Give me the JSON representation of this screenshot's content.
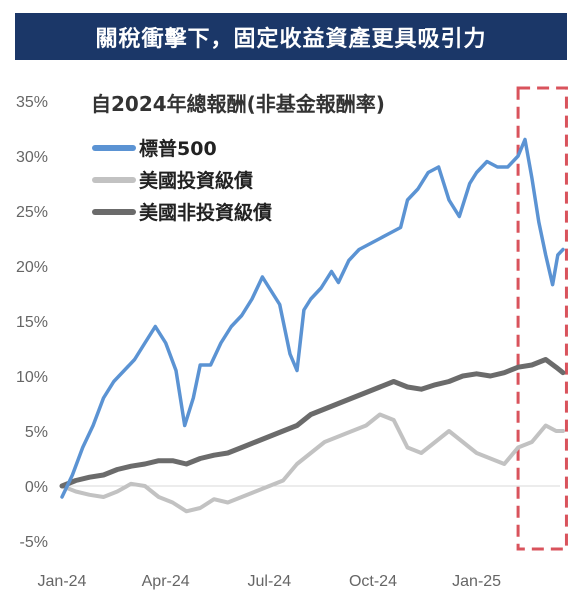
{
  "title": "關稅衝擊下，固定收益資產更具吸引力",
  "chart_data": {
    "type": "line",
    "subtitle": "自2024年總報酬(非基金報酬率)",
    "ylim": [
      -5,
      35
    ],
    "y_ticks": [
      "35%",
      "30%",
      "25%",
      "20%",
      "15%",
      "10%",
      "5%",
      "0%",
      "-5%"
    ],
    "y_tick_values": [
      35,
      30,
      25,
      20,
      15,
      10,
      5,
      0,
      -5
    ],
    "x_ticks": [
      "Jan-24",
      "Apr-24",
      "Jul-24",
      "Oct-24",
      "Jan-25"
    ],
    "x_tick_values": [
      0,
      3,
      6,
      9,
      12
    ],
    "x_range": [
      0,
      14.5
    ],
    "grid": false,
    "legend_position": "top-left",
    "highlight_box": {
      "x_from": 13.2,
      "x_to": 14.6,
      "style": "dashed",
      "color": "#d9535c"
    },
    "series": [
      {
        "name": "標普500",
        "color": "#5b93d3",
        "x": [
          0,
          0.3,
          0.6,
          0.9,
          1.2,
          1.5,
          1.8,
          2.1,
          2.4,
          2.7,
          3.0,
          3.3,
          3.55,
          3.8,
          4.0,
          4.3,
          4.6,
          4.9,
          5.2,
          5.5,
          5.8,
          6.0,
          6.3,
          6.6,
          6.8,
          7.0,
          7.2,
          7.5,
          7.8,
          8.0,
          8.3,
          8.6,
          8.9,
          9.2,
          9.5,
          9.8,
          10.0,
          10.3,
          10.6,
          10.9,
          11.2,
          11.5,
          11.8,
          12.0,
          12.3,
          12.6,
          12.9,
          13.2,
          13.4,
          13.6,
          13.8,
          14.0,
          14.2,
          14.35,
          14.5
        ],
        "values": [
          -1.0,
          1.0,
          3.5,
          5.5,
          8.0,
          9.5,
          10.5,
          11.5,
          13.0,
          14.5,
          13.0,
          10.5,
          5.5,
          8.0,
          11.0,
          11.0,
          13.0,
          14.5,
          15.5,
          17.0,
          19.0,
          18.0,
          16.5,
          12.0,
          10.5,
          16.0,
          17.0,
          18.0,
          19.5,
          18.5,
          20.5,
          21.5,
          22.0,
          22.5,
          23.0,
          23.5,
          26.0,
          27.0,
          28.5,
          29.0,
          26.0,
          24.5,
          27.5,
          28.5,
          29.5,
          29.0,
          29.0,
          30.0,
          31.5,
          28.0,
          24.0,
          21.0,
          18.3,
          21.0,
          21.5
        ]
      },
      {
        "name": "美國投資級債",
        "color": "#c2c2c2",
        "x": [
          0,
          0.4,
          0.8,
          1.2,
          1.6,
          2.0,
          2.4,
          2.8,
          3.2,
          3.6,
          4.0,
          4.4,
          4.8,
          5.2,
          5.6,
          6.0,
          6.4,
          6.8,
          7.2,
          7.6,
          8.0,
          8.4,
          8.8,
          9.2,
          9.6,
          10.0,
          10.4,
          10.8,
          11.2,
          11.6,
          12.0,
          12.4,
          12.8,
          13.2,
          13.6,
          14.0,
          14.3,
          14.5
        ],
        "values": [
          0.0,
          -0.5,
          -0.8,
          -1.0,
          -0.5,
          0.2,
          0.0,
          -1.0,
          -1.5,
          -2.3,
          -2.0,
          -1.2,
          -1.5,
          -1.0,
          -0.5,
          0.0,
          0.5,
          2.0,
          3.0,
          4.0,
          4.5,
          5.0,
          5.5,
          6.5,
          6.0,
          3.5,
          3.0,
          4.0,
          5.0,
          4.0,
          3.0,
          2.5,
          2.0,
          3.5,
          4.0,
          5.5,
          5.0,
          5.0
        ]
      },
      {
        "name": "美國非投資級債",
        "color": "#6b6b6b",
        "x": [
          0,
          0.4,
          0.8,
          1.2,
          1.6,
          2.0,
          2.4,
          2.8,
          3.2,
          3.6,
          4.0,
          4.4,
          4.8,
          5.2,
          5.6,
          6.0,
          6.4,
          6.8,
          7.2,
          7.6,
          8.0,
          8.4,
          8.8,
          9.2,
          9.6,
          10.0,
          10.4,
          10.8,
          11.2,
          11.6,
          12.0,
          12.4,
          12.8,
          13.2,
          13.6,
          14.0,
          14.3,
          14.5
        ],
        "values": [
          0.0,
          0.5,
          0.8,
          1.0,
          1.5,
          1.8,
          2.0,
          2.3,
          2.3,
          2.0,
          2.5,
          2.8,
          3.0,
          3.5,
          4.0,
          4.5,
          5.0,
          5.5,
          6.5,
          7.0,
          7.5,
          8.0,
          8.5,
          9.0,
          9.5,
          9.0,
          8.8,
          9.2,
          9.5,
          10.0,
          10.2,
          10.0,
          10.3,
          10.8,
          11.0,
          11.5,
          10.8,
          10.3
        ]
      }
    ]
  }
}
